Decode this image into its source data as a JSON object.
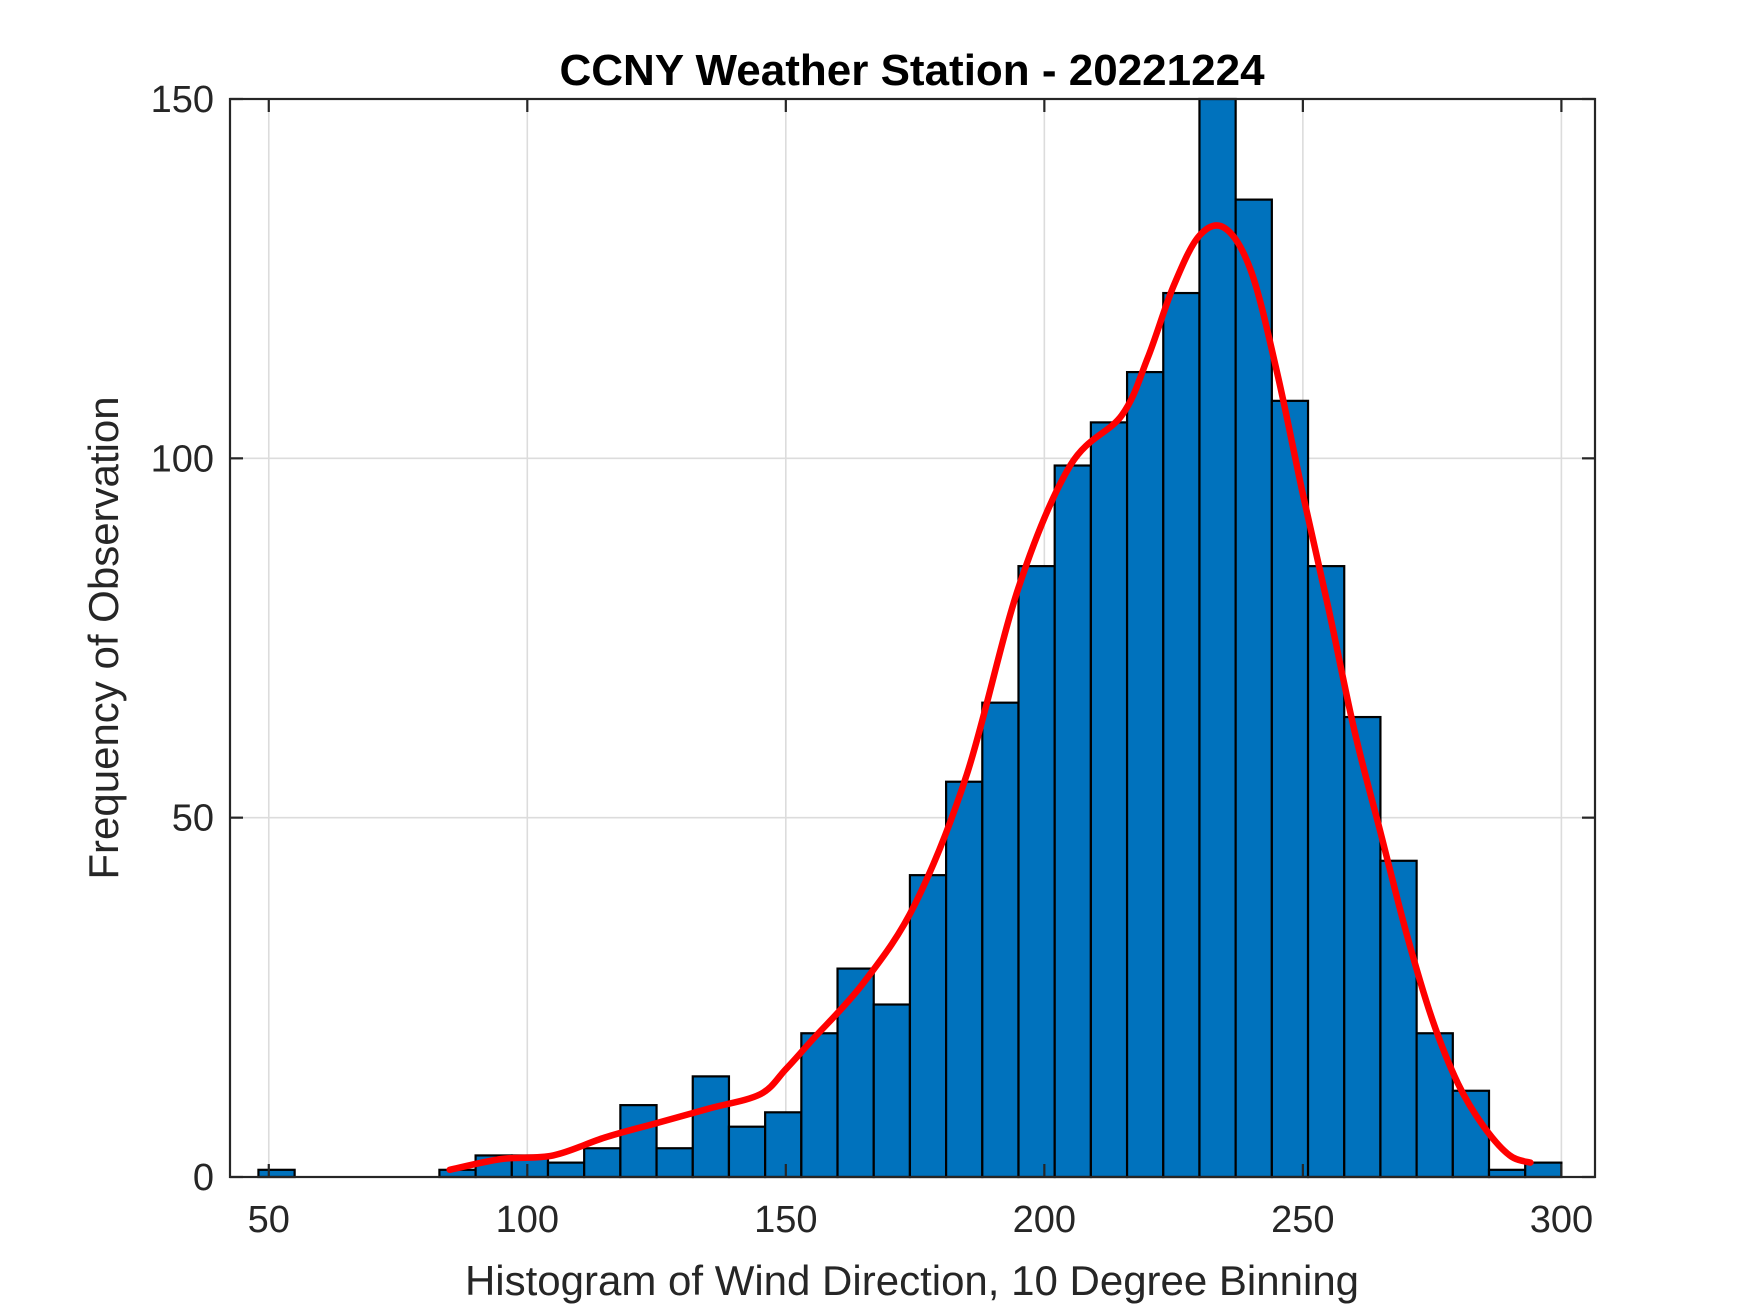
{
  "chart_data": {
    "type": "bar",
    "title": "CCNY Weather Station - 20221224",
    "xlabel": "Histogram of Wind Direction, 10 Degree Binning",
    "ylabel": "Frequency of Observation",
    "xlim": [
      42.5,
      306.5
    ],
    "ylim": [
      0,
      150
    ],
    "xticks": [
      50,
      100,
      150,
      200,
      250,
      300
    ],
    "yticks": [
      0,
      50,
      100,
      150
    ],
    "grid": true,
    "bin_width": 7,
    "bar_color": "#0072BD",
    "edge_color": "#000000",
    "bins": [
      {
        "x0": 48,
        "value": 1
      },
      {
        "x0": 83,
        "value": 1
      },
      {
        "x0": 90,
        "value": 3
      },
      {
        "x0": 97,
        "value": 3
      },
      {
        "x0": 104,
        "value": 2
      },
      {
        "x0": 111,
        "value": 4
      },
      {
        "x0": 118,
        "value": 10
      },
      {
        "x0": 125,
        "value": 4
      },
      {
        "x0": 132,
        "value": 14
      },
      {
        "x0": 139,
        "value": 7
      },
      {
        "x0": 146,
        "value": 9
      },
      {
        "x0": 153,
        "value": 20
      },
      {
        "x0": 160,
        "value": 29
      },
      {
        "x0": 167,
        "value": 24
      },
      {
        "x0": 174,
        "value": 42
      },
      {
        "x0": 181,
        "value": 55
      },
      {
        "x0": 188,
        "value": 66
      },
      {
        "x0": 195,
        "value": 85
      },
      {
        "x0": 202,
        "value": 99
      },
      {
        "x0": 209,
        "value": 105
      },
      {
        "x0": 216,
        "value": 112
      },
      {
        "x0": 223,
        "value": 123
      },
      {
        "x0": 230,
        "value": 150
      },
      {
        "x0": 237,
        "value": 136
      },
      {
        "x0": 244,
        "value": 108
      },
      {
        "x0": 251,
        "value": 85
      },
      {
        "x0": 258,
        "value": 64
      },
      {
        "x0": 265,
        "value": 44
      },
      {
        "x0": 272,
        "value": 20
      },
      {
        "x0": 279,
        "value": 12
      },
      {
        "x0": 286,
        "value": 1
      },
      {
        "x0": 293,
        "value": 2
      }
    ],
    "fit_curve": {
      "name": "density fit",
      "color": "#FF0000",
      "x": [
        85,
        95,
        105,
        115,
        125,
        135,
        145,
        150,
        155,
        165,
        175,
        185,
        195,
        205,
        215,
        220,
        225,
        230,
        235,
        240,
        245,
        250,
        255,
        260,
        265,
        270,
        275,
        280,
        285,
        290,
        294
      ],
      "y": [
        1,
        2.5,
        3,
        5.5,
        7.5,
        9.5,
        11.5,
        15,
        19,
        27,
        38,
        56,
        82,
        99,
        106,
        114,
        124,
        131,
        132,
        126,
        112,
        95,
        79,
        62,
        48,
        34,
        22,
        13,
        7,
        3,
        2
      ]
    }
  }
}
